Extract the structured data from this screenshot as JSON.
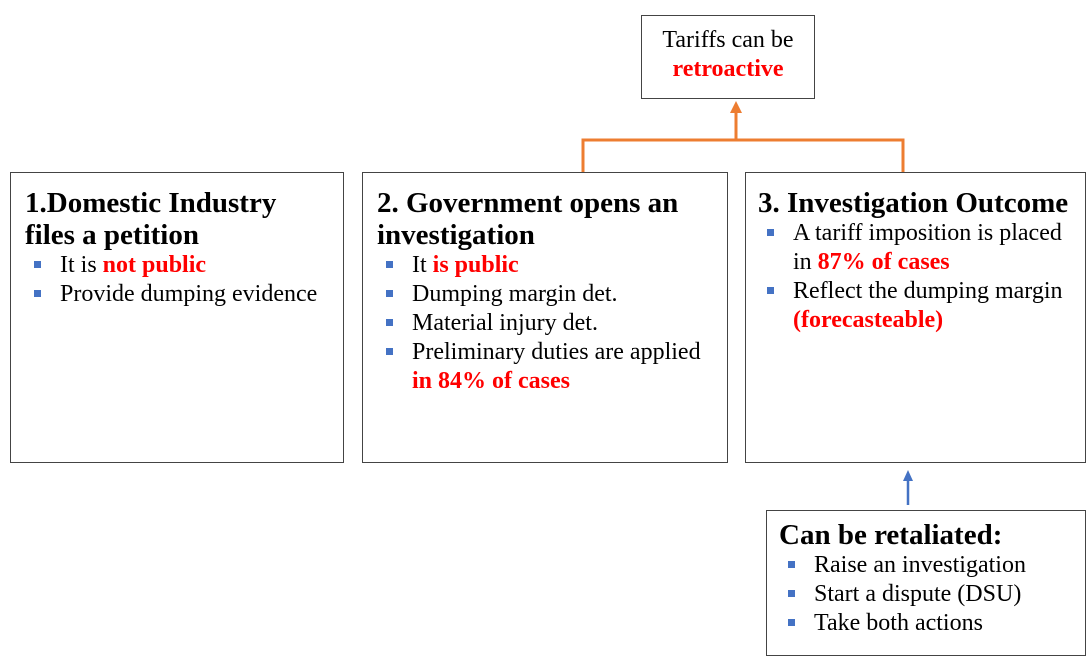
{
  "top_box": {
    "lines": [
      {
        "text": "Tariffs can be"
      },
      {
        "text": "retroactive",
        "color": "#ff0000",
        "bold": true
      }
    ]
  },
  "boxes": [
    {
      "title": "1.Domestic Industry files a petition",
      "bullets": [
        [
          {
            "text": "It is "
          },
          {
            "text": "not public",
            "color": "#ff0000",
            "bold": true
          }
        ],
        [
          {
            "text": "Provide dumping evidence"
          }
        ]
      ]
    },
    {
      "title": "2. Government opens an investigation",
      "bullets": [
        [
          {
            "text": "It "
          },
          {
            "text": "is public",
            "color": "#ff0000",
            "bold": true
          }
        ],
        [
          {
            "text": "Dumping margin det."
          }
        ],
        [
          {
            "text": "Material injury det."
          }
        ],
        [
          {
            "text": "Preliminary duties are applied "
          },
          {
            "text": "in 84% of cases",
            "color": "#ff0000",
            "bold": true
          }
        ]
      ]
    },
    {
      "title": "3. Investigation Outcome",
      "bullets": [
        [
          {
            "text": "A tariff imposition is placed in "
          },
          {
            "text": "87% of cases",
            "color": "#ff0000",
            "bold": true
          }
        ],
        [
          {
            "text": "Reflect the dumping margin "
          },
          {
            "text": "(forecasteable)",
            "color": "#ff0000",
            "bold": true
          }
        ]
      ]
    }
  ],
  "bottom_box": {
    "title": "Can be retaliated:",
    "bullets": [
      [
        {
          "text": "Raise an investigation"
        }
      ],
      [
        {
          "text": "Start a dispute (DSU)"
        }
      ],
      [
        {
          "text": "Take both actions"
        }
      ]
    ]
  }
}
